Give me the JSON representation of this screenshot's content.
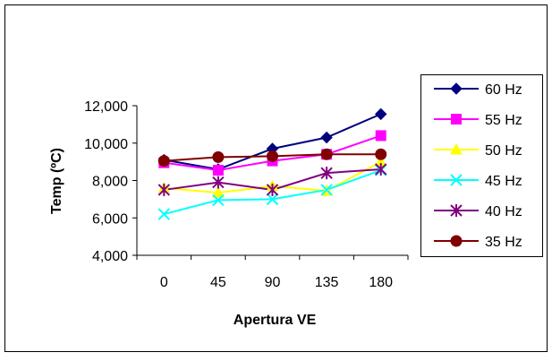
{
  "chart_data": {
    "type": "line",
    "title": "",
    "xlabel": "Apertura VE",
    "ylabel": "Temp (ºC)",
    "categories": [
      "0",
      "45",
      "90",
      "135",
      "180"
    ],
    "ylim": [
      4000,
      12000
    ],
    "yticks": [
      4000,
      6000,
      8000,
      10000,
      12000
    ],
    "ytick_labels": [
      "4,000",
      "6,000",
      "8,000",
      "10,000",
      "12,000"
    ],
    "grid": false,
    "legend_position": "right",
    "series": [
      {
        "name": "60 Hz",
        "color": "#000080",
        "marker": "diamond",
        "values": [
          9100,
          8600,
          9700,
          10300,
          11550
        ]
      },
      {
        "name": "55 Hz",
        "color": "#FF00FF",
        "marker": "square",
        "values": [
          8950,
          8550,
          9050,
          9400,
          10400
        ]
      },
      {
        "name": "50 Hz",
        "color": "#FFFF00",
        "marker": "triangle",
        "values": [
          7600,
          7350,
          7700,
          7450,
          9000
        ]
      },
      {
        "name": "45 Hz",
        "color": "#00FFFF",
        "marker": "x",
        "values": [
          6200,
          6950,
          7000,
          7500,
          8550
        ]
      },
      {
        "name": "40 Hz",
        "color": "#800080",
        "marker": "star",
        "values": [
          7500,
          7900,
          7500,
          8400,
          8600
        ]
      },
      {
        "name": "35 Hz",
        "color": "#800000",
        "marker": "circle",
        "values": [
          9050,
          9250,
          9300,
          9400,
          9400
        ]
      }
    ]
  }
}
